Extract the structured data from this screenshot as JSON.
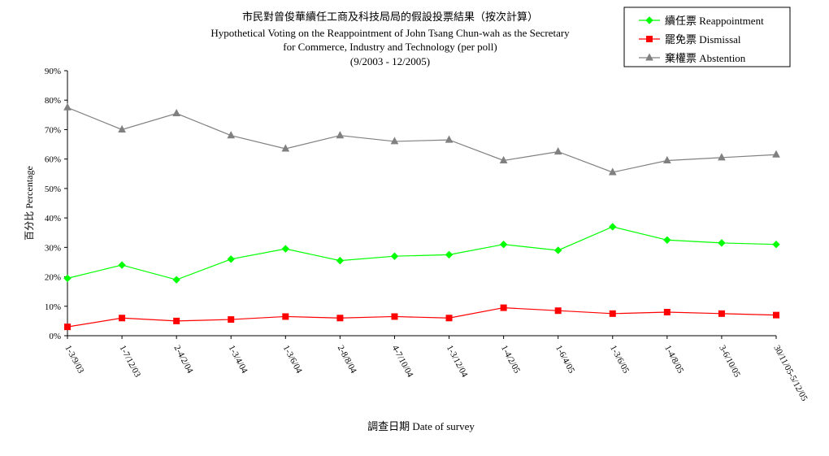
{
  "chart_data": {
    "type": "line",
    "title": "市民對曾俊華續任工商及科技局局的假設投票結果（按次計算）",
    "subtitle_lines": [
      "Hypothetical Voting on the Reappointment of  John Tsang Chun-wah as the Secretary",
      "for Commerce, Industry and Technology (per poll)",
      "(9/2003 - 12/2005)"
    ],
    "xlabel": "調查日期 Date of survey",
    "ylabel": "百分比  Percentage",
    "ylim": [
      0,
      90
    ],
    "ytick_labels": [
      "0%",
      "10%",
      "20%",
      "30%",
      "40%",
      "50%",
      "60%",
      "70%",
      "80%",
      "90%"
    ],
    "grid": false,
    "legend_position": "top-right",
    "categories": [
      "1-3/9/03",
      "1-7/12/03",
      "2-4/2/04",
      "1-3/4/04",
      "1-3/6/04",
      "2-8/8/04",
      "4-7/10/04",
      "1-3/12/04",
      "1-4/2/05",
      "1-6/4/05",
      "1-3/6/05",
      "1-4/8/05",
      "3-6/10/05",
      "30/11/05-5/12/05"
    ],
    "series": [
      {
        "name": "續任票  Reappointment",
        "color": "#00ff00",
        "marker": "diamond",
        "values": [
          19.5,
          24.0,
          19.0,
          26.0,
          29.5,
          25.5,
          27.0,
          27.5,
          31.0,
          29.0,
          37.0,
          32.5,
          31.5,
          31.0
        ]
      },
      {
        "name": "罷免票  Dismissal",
        "color": "#ff0000",
        "marker": "square",
        "values": [
          3.0,
          6.0,
          5.0,
          5.5,
          6.5,
          6.0,
          6.5,
          6.0,
          9.5,
          8.5,
          7.5,
          8.0,
          7.5,
          7.0
        ]
      },
      {
        "name": "棄權票  Abstention",
        "color": "#808080",
        "marker": "triangle",
        "values": [
          77.5,
          70.0,
          75.5,
          68.0,
          63.5,
          68.0,
          66.0,
          66.5,
          59.5,
          62.5,
          55.5,
          59.5,
          60.5,
          61.5
        ]
      }
    ]
  }
}
